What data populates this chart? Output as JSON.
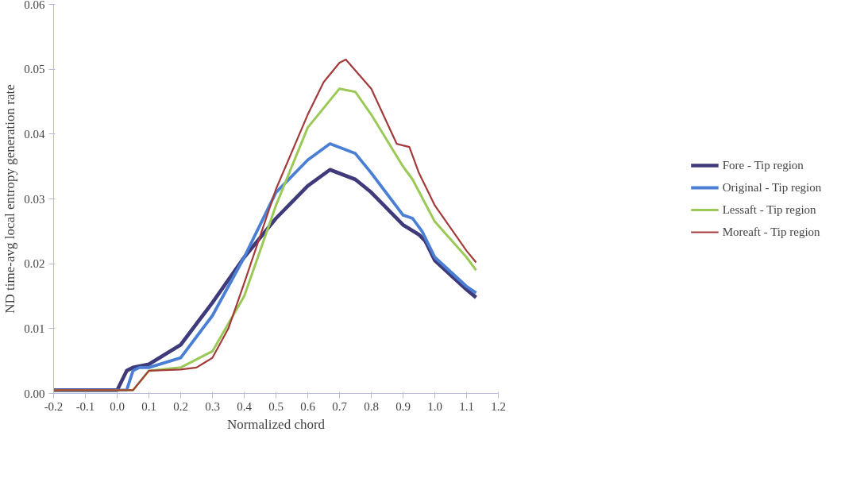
{
  "chart_data": {
    "type": "line",
    "xlabel": "Normalized chord",
    "ylabel": "ND time-avg local entropy generation rate",
    "xlim": [
      -0.2,
      1.2
    ],
    "ylim": [
      0,
      0.06
    ],
    "xticks": [
      {
        "value": -0.2,
        "label": "-0.2"
      },
      {
        "value": -0.1,
        "label": "-0.1"
      },
      {
        "value": 0,
        "label": "0.0"
      },
      {
        "value": 0.1,
        "label": "0.1"
      },
      {
        "value": 0.2,
        "label": "0.2"
      },
      {
        "value": 0.3,
        "label": "0.3"
      },
      {
        "value": 0.4,
        "label": "0.4"
      },
      {
        "value": 0.5,
        "label": "0.5"
      },
      {
        "value": 0.6,
        "label": "0.6"
      },
      {
        "value": 0.7,
        "label": "0.7"
      },
      {
        "value": 0.8,
        "label": "0.8"
      },
      {
        "value": 0.9,
        "label": "0.9"
      },
      {
        "value": 1,
        "label": "1.0"
      },
      {
        "value": 1.1,
        "label": "1.1"
      },
      {
        "value": 1.2,
        "label": "1.2"
      }
    ],
    "yticks": [
      {
        "value": 0,
        "label": "0.00"
      },
      0.01,
      0.02,
      0.03,
      0.04,
      0.05,
      {
        "value": 0.06,
        "label": "0.06"
      }
    ],
    "grid": false,
    "legend": "right",
    "line_style": "solid",
    "marker": "none",
    "series": [
      {
        "name": "Fore - Tip region",
        "color": "#3f3a7a",
        "x": [
          -0.2,
          0.0,
          0.03,
          0.05,
          0.1,
          0.2,
          0.3,
          0.4,
          0.5,
          0.6,
          0.67,
          0.75,
          0.8,
          0.9,
          0.95,
          0.97,
          1.0,
          1.1,
          1.13
        ],
        "values": [
          0.0005,
          0.0005,
          0.0035,
          0.004,
          0.0045,
          0.0075,
          0.014,
          0.021,
          0.027,
          0.032,
          0.0345,
          0.033,
          0.031,
          0.026,
          0.0245,
          0.0235,
          0.0205,
          0.016,
          0.0148
        ]
      },
      {
        "name": "Original - Tip region",
        "color": "#4a7fd4",
        "x": [
          -0.2,
          0.03,
          0.05,
          0.07,
          0.1,
          0.2,
          0.3,
          0.4,
          0.47,
          0.5,
          0.6,
          0.67,
          0.75,
          0.8,
          0.9,
          0.93,
          0.96,
          1.0,
          1.1,
          1.13
        ],
        "values": [
          0.0005,
          0.0005,
          0.0035,
          0.004,
          0.004,
          0.0055,
          0.012,
          0.021,
          0.028,
          0.031,
          0.036,
          0.0385,
          0.037,
          0.034,
          0.0275,
          0.027,
          0.025,
          0.021,
          0.0165,
          0.0155
        ]
      },
      {
        "name": "Lessaft - Tip region",
        "color": "#9bc957",
        "x": [
          -0.2,
          0.05,
          0.1,
          0.2,
          0.3,
          0.4,
          0.5,
          0.6,
          0.7,
          0.75,
          0.8,
          0.9,
          0.93,
          1.0,
          1.1,
          1.13
        ],
        "values": [
          0.0005,
          0.0005,
          0.0035,
          0.004,
          0.0065,
          0.015,
          0.029,
          0.041,
          0.047,
          0.0465,
          0.043,
          0.035,
          0.033,
          0.0265,
          0.021,
          0.019
        ]
      },
      {
        "name": "Moreaft - Tip region",
        "color": "#a33b3b",
        "x": [
          -0.2,
          0.05,
          0.1,
          0.2,
          0.25,
          0.3,
          0.35,
          0.4,
          0.5,
          0.6,
          0.65,
          0.7,
          0.72,
          0.8,
          0.88,
          0.92,
          0.95,
          1.0,
          1.1,
          1.13
        ],
        "values": [
          0.0005,
          0.0005,
          0.0035,
          0.0037,
          0.004,
          0.0055,
          0.01,
          0.017,
          0.0315,
          0.043,
          0.048,
          0.051,
          0.0515,
          0.047,
          0.0385,
          0.038,
          0.034,
          0.029,
          0.022,
          0.0202
        ]
      }
    ]
  }
}
